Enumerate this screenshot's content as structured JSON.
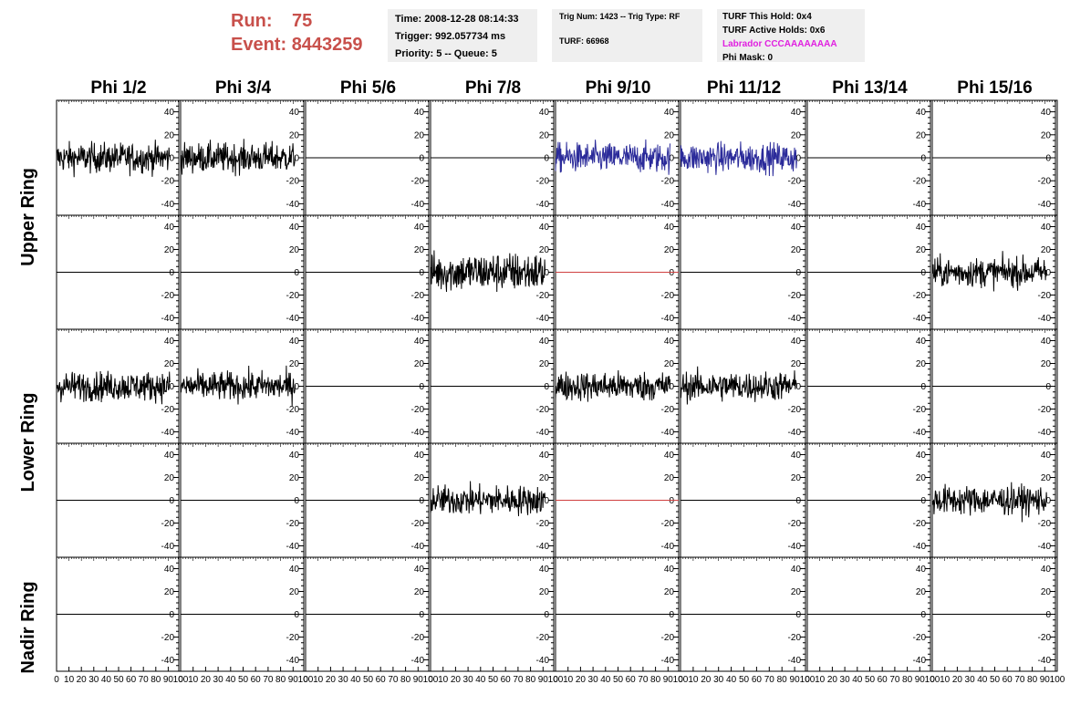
{
  "run_info": {
    "run_label": "Run:",
    "run_value": "75",
    "event_label": "Event:",
    "event_value": "8443259"
  },
  "header": {
    "time": "Time: 2008-12-28 08:14:33",
    "trigger": "Trigger: 992.057734 ms",
    "priority_queue": "Priority: 5 -- Queue: 5",
    "trig_num_type": "Trig Num: 1423 -- Trig Type: RF",
    "turf": "TURF: 66968",
    "turf_this_hold": "TURF This Hold: 0x4",
    "turf_active_holds": "TURF Active Holds: 0x6",
    "labrador": "Labrador CCCAAAAAAAA",
    "phi_mask": "Phi Mask: 0"
  },
  "phi_headers": [
    "Phi 1/2",
    "Phi 3/4",
    "Phi 5/6",
    "Phi 7/8",
    "Phi 9/10",
    "Phi 11/12",
    "Phi 13/14",
    "Phi 15/16"
  ],
  "ring_labels": {
    "upper": "Upper Ring",
    "lower": "Lower Ring",
    "nadir": "Nadir Ring"
  },
  "colors": {
    "run_text": "#c8504b",
    "labrador": "#e020e0",
    "trace_default": "#000000",
    "trace_triggered": "#2b2b9a",
    "trace_masked": "#d04040"
  },
  "chart_data": {
    "type": "line",
    "x_ticks": [
      "0",
      "10",
      "20",
      "30",
      "40",
      "50",
      "60",
      "70",
      "80",
      "90",
      "100"
    ],
    "y_ticks": [
      "40",
      "20",
      "0",
      "-20",
      "-40"
    ],
    "xlim": [
      0,
      100
    ],
    "ylim": [
      -50,
      50
    ],
    "trace_rows": [
      [
        "noise",
        "noise",
        "flat",
        "flat",
        "noise-blue",
        "noise-blue",
        "flat",
        "flat"
      ],
      [
        "flat",
        "flat",
        "flat",
        "noise-wide",
        "flat-red",
        "flat",
        "flat",
        "noise"
      ],
      [
        "noise",
        "noise",
        "flat",
        "flat",
        "noise",
        "noise",
        "flat",
        "flat"
      ],
      [
        "flat",
        "flat",
        "flat",
        "noise",
        "flat-red",
        "flat",
        "flat",
        "noise"
      ],
      [
        "flat",
        "flat",
        "flat",
        "flat",
        "flat",
        "flat",
        "flat",
        "flat"
      ]
    ],
    "trace_amplitude": 20
  }
}
